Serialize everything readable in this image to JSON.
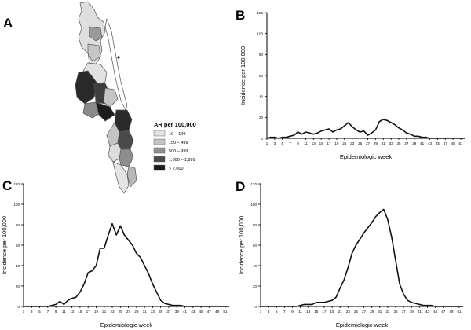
{
  "panels": {
    "a": {
      "letter": "A"
    },
    "b": {
      "letter": "B"
    },
    "c": {
      "letter": "C"
    },
    "d": {
      "letter": "D"
    }
  },
  "map_legend": {
    "title": "AR per 100,000",
    "items": [
      {
        "label": "10 – 149",
        "color": "#e2e2e2"
      },
      {
        "label": "150 – 499",
        "color": "#c4c4c4"
      },
      {
        "label": "500 – 999",
        "color": "#8e8e8e"
      },
      {
        "label": "1,000 – 1,999",
        "color": "#4a4a4a"
      },
      {
        "label": "> 2,000",
        "color": "#1a1a1a"
      }
    ]
  },
  "chart_data": [
    {
      "type": "line",
      "panel": "B",
      "xlabel": "Epidemiologic week",
      "ylabel": "Incidence per 100,000",
      "ylim": [
        0,
        120
      ],
      "xlim": [
        1,
        52
      ],
      "yticks": [
        0,
        20,
        40,
        60,
        80,
        100,
        120
      ],
      "xticks": [
        1,
        3,
        5,
        7,
        9,
        11,
        13,
        15,
        17,
        19,
        21,
        23,
        25,
        27,
        29,
        31,
        33,
        35,
        37,
        39,
        41,
        43,
        45,
        47,
        49,
        51
      ],
      "x": [
        1,
        2,
        3,
        4,
        5,
        6,
        7,
        8,
        9,
        10,
        11,
        12,
        13,
        14,
        15,
        16,
        17,
        18,
        19,
        20,
        21,
        22,
        23,
        24,
        25,
        26,
        27,
        28,
        29,
        30,
        31,
        32,
        33,
        34,
        35,
        36,
        37,
        38,
        39,
        40,
        41,
        42,
        43,
        44,
        45,
        46,
        47,
        48,
        49,
        50,
        51,
        52
      ],
      "series": [
        {
          "values": [
            0,
            1,
            1,
            0,
            1,
            1,
            2,
            3,
            6,
            4,
            6,
            5,
            4,
            5,
            7,
            8,
            9,
            6,
            8,
            9,
            12,
            15,
            11,
            8,
            6,
            7,
            3,
            5,
            8,
            16,
            18,
            17,
            15,
            13,
            10,
            8,
            5,
            4,
            2,
            2,
            1,
            1,
            0,
            0,
            0,
            0,
            0,
            0,
            0,
            0,
            0,
            0
          ]
        }
      ]
    },
    {
      "type": "line",
      "panel": "C",
      "xlabel": "Epidemiologic week",
      "ylabel": "Incidence per 100,000",
      "ylim": [
        0,
        120
      ],
      "xlim": [
        1,
        52
      ],
      "yticks": [
        0,
        20,
        40,
        60,
        80,
        100,
        120
      ],
      "xticks": [
        1,
        3,
        5,
        7,
        9,
        11,
        13,
        15,
        17,
        19,
        21,
        23,
        25,
        27,
        29,
        31,
        33,
        35,
        37,
        39,
        41,
        43,
        45,
        47,
        49,
        51
      ],
      "x": [
        1,
        2,
        3,
        4,
        5,
        6,
        7,
        8,
        9,
        10,
        11,
        12,
        13,
        14,
        15,
        16,
        17,
        18,
        19,
        20,
        21,
        22,
        23,
        24,
        25,
        26,
        27,
        28,
        29,
        30,
        31,
        32,
        33,
        34,
        35,
        36,
        37,
        38,
        39,
        40,
        41,
        42,
        43,
        44,
        45,
        46,
        47,
        48,
        49,
        50,
        51,
        52
      ],
      "series": [
        {
          "values": [
            0,
            0,
            0,
            0,
            0,
            0,
            0,
            1,
            2,
            5,
            2,
            6,
            8,
            9,
            14,
            22,
            33,
            35,
            40,
            57,
            57,
            70,
            81,
            70,
            79,
            70,
            65,
            60,
            52,
            48,
            40,
            32,
            22,
            14,
            6,
            3,
            2,
            1,
            1,
            1,
            0,
            0,
            0,
            0,
            0,
            0,
            0,
            0,
            0,
            0,
            0,
            0
          ]
        }
      ]
    },
    {
      "type": "line",
      "panel": "D",
      "xlabel": "Epidemiologic week",
      "ylabel": "Incidence per 100,000",
      "ylim": [
        0,
        120
      ],
      "xlim": [
        1,
        52
      ],
      "yticks": [
        0,
        20,
        40,
        60,
        80,
        100,
        120
      ],
      "xticks": [
        1,
        3,
        5,
        7,
        9,
        11,
        13,
        15,
        17,
        19,
        21,
        23,
        25,
        27,
        29,
        31,
        33,
        35,
        37,
        39,
        41,
        43,
        45,
        47,
        49,
        51
      ],
      "x": [
        1,
        2,
        3,
        4,
        5,
        6,
        7,
        8,
        9,
        10,
        11,
        12,
        13,
        14,
        15,
        16,
        17,
        18,
        19,
        20,
        21,
        22,
        23,
        24,
        25,
        26,
        27,
        28,
        29,
        30,
        31,
        32,
        33,
        34,
        35,
        36,
        37,
        38,
        39,
        40,
        41,
        42,
        43,
        44,
        45,
        46,
        47,
        48,
        49,
        50,
        51,
        52
      ],
      "series": [
        {
          "values": [
            0,
            0,
            0,
            0,
            0,
            0,
            0,
            0,
            0,
            0,
            1,
            2,
            2,
            2,
            4,
            4,
            4,
            5,
            6,
            9,
            18,
            26,
            38,
            52,
            60,
            66,
            72,
            77,
            82,
            88,
            92,
            95,
            85,
            68,
            45,
            22,
            12,
            6,
            4,
            3,
            2,
            1,
            1,
            1,
            0,
            0,
            0,
            0,
            0,
            0,
            0,
            0
          ]
        }
      ]
    }
  ]
}
